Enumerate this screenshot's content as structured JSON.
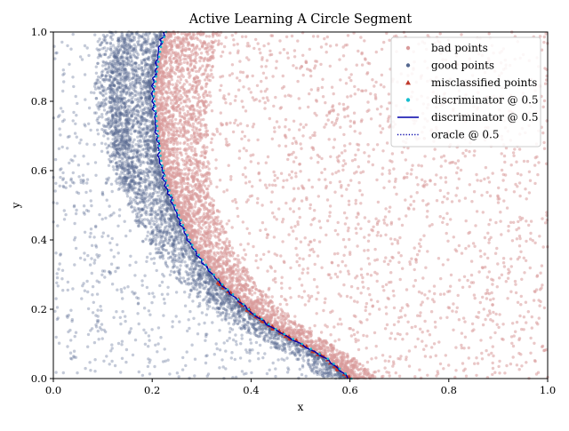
{
  "chart_data": {
    "type": "scatter",
    "title": "Active Learning A Circle Segment",
    "xlabel": "x",
    "ylabel": "y",
    "xlim": [
      0.0,
      1.0
    ],
    "ylim": [
      0.0,
      1.0
    ],
    "xticks": [
      "0.0",
      "0.2",
      "0.4",
      "0.6",
      "0.8",
      "1.0"
    ],
    "yticks": [
      "0.0",
      "0.2",
      "0.4",
      "0.6",
      "0.8",
      "1.0"
    ],
    "grid": false,
    "legend_position": "top-right",
    "boundary": {
      "shape": "circle",
      "center": [
        1.0,
        0.0
      ],
      "radius": 0.4,
      "note_x_range": [
        0.2,
        0.6
      ]
    },
    "series": [
      {
        "name": "bad points",
        "kind": "scatter",
        "marker": "circle",
        "color": "#d99a9a",
        "region": "outside the circle segment (x to the right of the boundary)",
        "density": "dense near the boundary, sparse elsewhere"
      },
      {
        "name": "good points",
        "kind": "scatter",
        "marker": "circle",
        "color": "#55688f",
        "region": "inside the segment (x to the left of the boundary)",
        "density": "dense near the boundary, sparse elsewhere"
      },
      {
        "name": "misclassified points",
        "kind": "scatter",
        "marker": "triangle",
        "color": "#c0392b",
        "region": "along the boundary"
      },
      {
        "name": "discriminator @ 0.5",
        "kind": "scatter",
        "marker": "circle",
        "color": "#17becf"
      },
      {
        "name": "discriminator @ 0.5",
        "kind": "line",
        "style": "solid",
        "color": "#0000aa"
      },
      {
        "name": "oracle @ 0.5",
        "kind": "line",
        "style": "dotted",
        "color": "#0000aa"
      }
    ],
    "boundary_curve": {
      "x": [
        0.6,
        0.55,
        0.5,
        0.45,
        0.4,
        0.37,
        0.34,
        0.31,
        0.28,
        0.26,
        0.24,
        0.225,
        0.215,
        0.21,
        0.205,
        0.2,
        0.205,
        0.21,
        0.215,
        0.225
      ],
      "y": [
        0.0,
        0.06,
        0.1,
        0.14,
        0.19,
        0.23,
        0.27,
        0.32,
        0.38,
        0.44,
        0.51,
        0.57,
        0.63,
        0.69,
        0.76,
        0.82,
        0.87,
        0.92,
        0.96,
        1.0
      ]
    }
  }
}
